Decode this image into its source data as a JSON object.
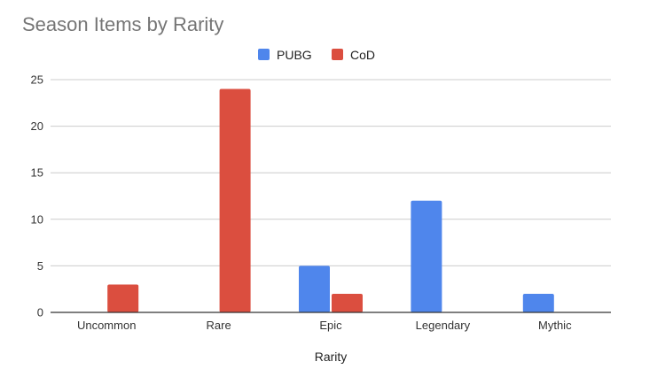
{
  "chart_data": {
    "type": "bar",
    "title": "Season Items by Rarity",
    "xlabel": "Rarity",
    "ylabel": "",
    "categories": [
      "Uncommon",
      "Rare",
      "Epic",
      "Legendary",
      "Mythic"
    ],
    "series": [
      {
        "name": "PUBG",
        "values": [
          0,
          0,
          5,
          12,
          2
        ],
        "color": "#4f86ec"
      },
      {
        "name": "CoD",
        "values": [
          3,
          24,
          2,
          0,
          0
        ],
        "color": "#db4e3f"
      }
    ],
    "ylim": [
      0,
      25
    ],
    "yticks": [
      0,
      5,
      10,
      15,
      20,
      25
    ],
    "grid": true,
    "legend_position": "top"
  }
}
